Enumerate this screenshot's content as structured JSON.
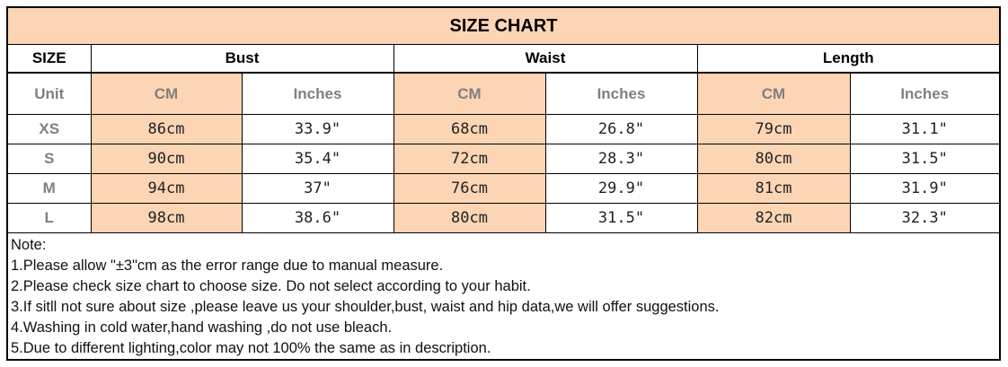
{
  "title": "SIZE CHART",
  "headers": {
    "size": "SIZE",
    "bust": "Bust",
    "waist": "Waist",
    "length": "Length"
  },
  "units": {
    "label": "Unit",
    "cm": "CM",
    "inches": "Inches"
  },
  "rows": [
    {
      "size": "XS",
      "bust_cm": "86cm",
      "bust_in": "33.9\"",
      "waist_cm": "68cm",
      "waist_in": "26.8\"",
      "length_cm": "79cm",
      "length_in": "31.1\""
    },
    {
      "size": "S",
      "bust_cm": "90cm",
      "bust_in": "35.4\"",
      "waist_cm": "72cm",
      "waist_in": "28.3\"",
      "length_cm": "80cm",
      "length_in": "31.5\""
    },
    {
      "size": "M",
      "bust_cm": "94cm",
      "bust_in": "37\"",
      "waist_cm": "76cm",
      "waist_in": "29.9\"",
      "length_cm": "81cm",
      "length_in": "31.9\""
    },
    {
      "size": "L",
      "bust_cm": "98cm",
      "bust_in": "38.6\"",
      "waist_cm": "80cm",
      "waist_in": "31.5\"",
      "length_cm": "82cm",
      "length_in": "32.3\""
    }
  ],
  "notes": [
    "Note:",
    "1.Please allow \"±3\"cm as the error range due to manual measure.",
    "2.Please check size chart to choose size. Do not select according to your habit.",
    "3.If sitll not sure about size ,please leave us your shoulder,bust, waist and hip data,we will offer suggestions.",
    "4.Washing in cold water,hand washing ,do not use bleach.",
    "5.Due to different lighting,color may not 100% the same as in description."
  ],
  "colors": {
    "accent": "#fcd5b4",
    "unit_text": "#808080"
  }
}
